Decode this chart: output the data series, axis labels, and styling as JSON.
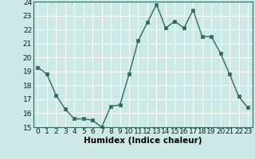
{
  "xlabel": "Humidex (Indice chaleur)",
  "x_values": [
    0,
    1,
    2,
    3,
    4,
    5,
    6,
    7,
    8,
    9,
    10,
    11,
    12,
    13,
    14,
    15,
    16,
    17,
    18,
    19,
    20,
    21,
    22,
    23
  ],
  "y_values": [
    19.3,
    18.8,
    17.3,
    16.3,
    15.6,
    15.6,
    15.5,
    15.0,
    16.5,
    16.6,
    18.8,
    21.2,
    22.5,
    23.8,
    22.1,
    22.6,
    22.1,
    23.4,
    21.5,
    21.5,
    20.3,
    18.8,
    17.2,
    16.4
  ],
  "line_color": "#2e6b5e",
  "marker_color": "#2e6b5e",
  "bg_color": "#cce9e5",
  "grid_color": "#ffffff",
  "ylim": [
    15,
    24
  ],
  "yticks": [
    15,
    16,
    17,
    18,
    19,
    20,
    21,
    22,
    23,
    24
  ],
  "xticks": [
    0,
    1,
    2,
    3,
    4,
    5,
    6,
    7,
    8,
    9,
    10,
    11,
    12,
    13,
    14,
    15,
    16,
    17,
    18,
    19,
    20,
    21,
    22,
    23
  ],
  "xlabel_fontsize": 7.5,
  "tick_fontsize": 6.5,
  "marker_size": 2.5,
  "line_width": 1.0
}
